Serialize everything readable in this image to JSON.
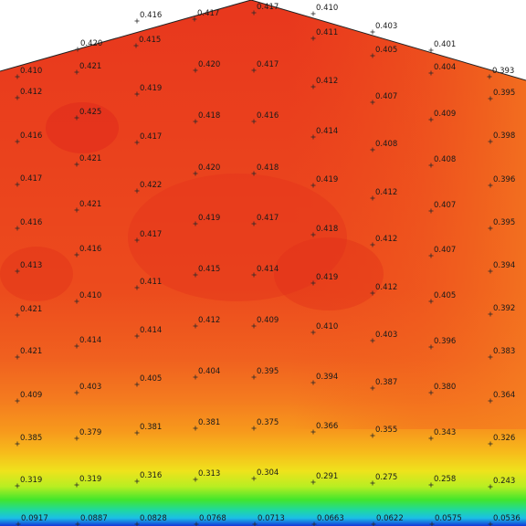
{
  "chart_data": {
    "type": "heatmap",
    "colormap": "rainbow (blue-low to red-high)",
    "rows": [
      {
        "y": "ridge",
        "values": [
          "0.416",
          "0.417",
          "0.417",
          "0.410",
          "0.403",
          "0.401",
          "0.393"
        ]
      },
      {
        "y": "r1",
        "values": [
          "0.420",
          "0.415",
          "0.411",
          "0.405"
        ]
      },
      {
        "y": "r2",
        "values": [
          "0.410",
          "0.421",
          "0.420",
          "0.417",
          "0.412",
          "0.404"
        ]
      },
      {
        "y": "r3",
        "values": [
          "0.412",
          "0.419",
          "0.407",
          "0.395"
        ]
      },
      {
        "y": "r4",
        "values": [
          "0.425",
          "0.418",
          "0.416",
          "0.409"
        ]
      },
      {
        "y": "r5",
        "values": [
          "0.416",
          "0.417",
          "0.414",
          "0.408",
          "0.398"
        ]
      },
      {
        "y": "r6",
        "values": [
          "0.421",
          "0.408"
        ]
      },
      {
        "y": "r7",
        "values": [
          "0.417",
          "0.420",
          "0.418",
          "0.419",
          "0.396"
        ]
      },
      {
        "y": "r8",
        "values": [
          "0.422",
          "0.412"
        ]
      },
      {
        "y": "r9",
        "values": [
          "0.421",
          "0.407"
        ]
      },
      {
        "y": "r10",
        "values": [
          "0.416",
          "0.419",
          "0.417",
          "0.418",
          "0.395"
        ]
      },
      {
        "y": "r11",
        "values": [
          "0.417",
          "0.412"
        ]
      },
      {
        "y": "r12",
        "values": [
          "0.416",
          "0.407"
        ]
      },
      {
        "y": "r13",
        "values": [
          "0.413",
          "0.415",
          "0.414",
          "0.394"
        ]
      },
      {
        "y": "r14",
        "values": [
          "0.411",
          "0.419",
          "0.412"
        ]
      },
      {
        "y": "r15",
        "values": [
          "0.410",
          "0.405"
        ]
      },
      {
        "y": "r16",
        "values": [
          "0.421",
          "0.392"
        ]
      },
      {
        "y": "r17",
        "values": [
          "0.412",
          "0.409"
        ]
      },
      {
        "y": "r18",
        "values": [
          "0.414",
          "0.410"
        ]
      },
      {
        "y": "r19",
        "values": [
          "0.414",
          "0.403"
        ]
      },
      {
        "y": "r20",
        "values": [
          "0.421",
          "0.396",
          "0.383"
        ]
      },
      {
        "y": "r21",
        "values": [
          "0.405",
          "0.404",
          "0.395",
          "0.394"
        ]
      },
      {
        "y": "r22",
        "values": [
          "0.403",
          "0.387",
          "0.380"
        ]
      },
      {
        "y": "r23",
        "values": [
          "0.409",
          "0.364"
        ]
      },
      {
        "y": "r24",
        "values": [
          "0.381",
          "0.381",
          "0.375",
          "0.366",
          "0.355"
        ]
      },
      {
        "y": "r25",
        "values": [
          "0.379",
          "0.343"
        ]
      },
      {
        "y": "r26",
        "values": [
          "0.385",
          "0.326"
        ]
      },
      {
        "y": "r27",
        "values": [
          "0.319",
          "0.319",
          "0.316",
          "0.313",
          "0.304",
          "0.291",
          "0.275",
          "0.258",
          "0.243"
        ]
      },
      {
        "y": "bottom",
        "values": [
          "0.0917",
          "0.0887",
          "0.0828",
          "0.0768",
          "0.0713",
          "0.0663",
          "0.0622",
          "0.0575",
          "0.0536"
        ]
      }
    ]
  },
  "probes": [
    {
      "t": "0.416"
    },
    {
      "t": "0.417"
    },
    {
      "t": "0.417"
    },
    {
      "t": "0.410"
    },
    {
      "t": "0.403"
    },
    {
      "t": "0.401"
    },
    {
      "t": "0.393"
    },
    {
      "t": "0.420"
    },
    {
      "t": "0.415"
    },
    {
      "t": "0.411"
    },
    {
      "t": "0.405"
    },
    {
      "t": "0.410"
    },
    {
      "t": "0.421"
    },
    {
      "t": "0.420"
    },
    {
      "t": "0.417"
    },
    {
      "t": "0.412"
    },
    {
      "t": "0.404"
    },
    {
      "t": "0.412"
    },
    {
      "t": "0.419"
    },
    {
      "t": "0.407"
    },
    {
      "t": "0.395"
    },
    {
      "t": "0.425"
    },
    {
      "t": "0.418"
    },
    {
      "t": "0.416"
    },
    {
      "t": "0.409"
    },
    {
      "t": "0.416"
    },
    {
      "t": "0.417"
    },
    {
      "t": "0.414"
    },
    {
      "t": "0.408"
    },
    {
      "t": "0.398"
    },
    {
      "t": "0.421"
    },
    {
      "t": "0.408"
    },
    {
      "t": "0.417"
    },
    {
      "t": "0.420"
    },
    {
      "t": "0.418"
    },
    {
      "t": "0.419"
    },
    {
      "t": "0.396"
    },
    {
      "t": "0.422"
    },
    {
      "t": "0.412"
    },
    {
      "t": "0.421"
    },
    {
      "t": "0.407"
    },
    {
      "t": "0.416"
    },
    {
      "t": "0.419"
    },
    {
      "t": "0.417"
    },
    {
      "t": "0.418"
    },
    {
      "t": "0.395"
    },
    {
      "t": "0.417"
    },
    {
      "t": "0.412"
    },
    {
      "t": "0.416"
    },
    {
      "t": "0.407"
    },
    {
      "t": "0.413"
    },
    {
      "t": "0.415"
    },
    {
      "t": "0.414"
    },
    {
      "t": "0.394"
    },
    {
      "t": "0.411"
    },
    {
      "t": "0.419"
    },
    {
      "t": "0.412"
    },
    {
      "t": "0.410"
    },
    {
      "t": "0.405"
    },
    {
      "t": "0.421"
    },
    {
      "t": "0.392"
    },
    {
      "t": "0.412"
    },
    {
      "t": "0.409"
    },
    {
      "t": "0.414"
    },
    {
      "t": "0.410"
    },
    {
      "t": "0.414"
    },
    {
      "t": "0.403"
    },
    {
      "t": "0.421"
    },
    {
      "t": "0.396"
    },
    {
      "t": "0.383"
    },
    {
      "t": "0.405"
    },
    {
      "t": "0.404"
    },
    {
      "t": "0.395"
    },
    {
      "t": "0.394"
    },
    {
      "t": "0.403"
    },
    {
      "t": "0.387"
    },
    {
      "t": "0.380"
    },
    {
      "t": "0.409"
    },
    {
      "t": "0.364"
    },
    {
      "t": "0.381"
    },
    {
      "t": "0.381"
    },
    {
      "t": "0.375"
    },
    {
      "t": "0.366"
    },
    {
      "t": "0.355"
    },
    {
      "t": "0.379"
    },
    {
      "t": "0.343"
    },
    {
      "t": "0.385"
    },
    {
      "t": "0.326"
    },
    {
      "t": "0.319"
    },
    {
      "t": "0.319"
    },
    {
      "t": "0.316"
    },
    {
      "t": "0.313"
    },
    {
      "t": "0.304"
    },
    {
      "t": "0.291"
    },
    {
      "t": "0.275"
    },
    {
      "t": "0.258"
    },
    {
      "t": "0.243"
    },
    {
      "t": "0.0917"
    },
    {
      "t": "0.0887"
    },
    {
      "t": "0.0828"
    },
    {
      "t": "0.0768"
    },
    {
      "t": "0.0713"
    },
    {
      "t": "0.0663"
    },
    {
      "t": "0.0622"
    },
    {
      "t": "0.0575"
    },
    {
      "t": "0.0536"
    }
  ],
  "colors": {
    "red_max": "#e8351e",
    "orange": "#f36a1f",
    "yellow": "#f4e21c",
    "green": "#35e32e",
    "cyan": "#19c9e8",
    "blue": "#1436d8"
  }
}
